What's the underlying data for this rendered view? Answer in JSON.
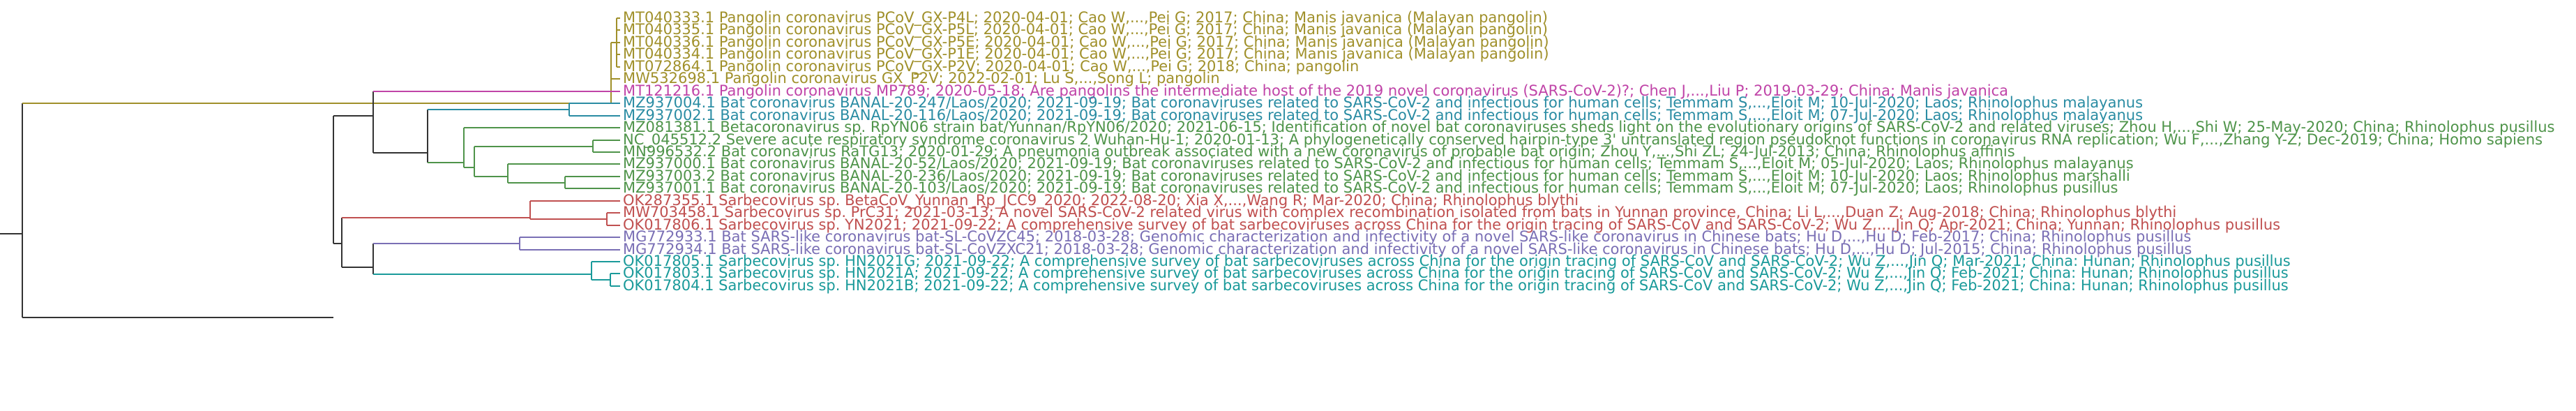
{
  "colors": {
    "root": "#333333",
    "pangolin": "#a0902a",
    "mp789": "#c044a8",
    "banal_teal": "#2a8ca3",
    "sarbeco_green": "#4f944a",
    "red": "#c05050",
    "purple": "#7a6fb5",
    "teal": "#1a9a9a"
  },
  "leaves": [
    {
      "label": "MT040333.1 Pangolin coronavirus PCoV_GX-P4L; 2020-04-01; Cao W,...,Pei G; 2017; China; Manis javanica (Malayan pangolin)",
      "color": "pangolin"
    },
    {
      "label": "MT040335.1 Pangolin coronavirus PCoV_GX-P5L; 2020-04-01; Cao W,...,Pei G; 2017; China; Manis javanica (Malayan pangolin)",
      "color": "pangolin"
    },
    {
      "label": "MT040336.1 Pangolin coronavirus PCoV_GX-P5E; 2020-04-01; Cao W,...,Pei G; 2017; China; Manis javanica (Malayan pangolin)",
      "color": "pangolin"
    },
    {
      "label": "MT040334.1 Pangolin coronavirus PCoV_GX-P1E; 2020-04-01; Cao W,...,Pei G; 2017; China; Manis javanica (Malayan pangolin)",
      "color": "pangolin"
    },
    {
      "label": "MT072864.1 Pangolin coronavirus PCoV_GX-P2V; 2020-04-01; Cao W,...,Pei G; 2018; China; pangolin",
      "color": "pangolin"
    },
    {
      "label": "MW532698.1 Pangolin coronavirus GX_P2V; 2022-02-01; Lu S,...,Song L; pangolin",
      "color": "pangolin"
    },
    {
      "label": "MT121216.1 Pangolin coronavirus MP789; 2020-05-18; Are pangolins the intermediate host of the 2019 novel coronavirus (SARS-CoV-2)?; Chen J,...,Liu P; 2019-03-29; China; Manis javanica",
      "color": "mp789"
    },
    {
      "label": "MZ937004.1 Bat coronavirus BANAL-20-247/Laos/2020; 2021-09-19; Bat coronaviruses related to SARS-CoV-2 and infectious for human cells; Temmam S,...,Eloit M; 10-Jul-2020; Laos; Rhinolophus malayanus",
      "color": "banal_teal"
    },
    {
      "label": "MZ937002.1 Bat coronavirus BANAL-20-116/Laos/2020; 2021-09-19; Bat coronaviruses related to SARS-CoV-2 and infectious for human cells; Temmam S,...,Eloit M; 07-Jul-2020; Laos; Rhinolophus malayanus",
      "color": "banal_teal"
    },
    {
      "label": "MZ081381.1 Betacoronavirus sp. RpYN06 strain bat/Yunnan/RpYN06/2020; 2021-06-15; Identification of novel bat coronaviruses sheds light on the evolutionary origins of SARS-CoV-2 and related viruses; Zhou H,...,Shi W; 25-May-2020; China; Rhinolophus pusillus",
      "color": "sarbeco_green"
    },
    {
      "label": "NC_045512.2 Severe acute respiratory syndrome coronavirus 2 Wuhan-Hu-1; 2020-01-13; A phylogenetically conserved hairpin-type 3' untranslated region pseudoknot functions in coronavirus RNA replication; Wu F,...,Zhang Y-Z; Dec-2019; China; Homo sapiens",
      "color": "sarbeco_green"
    },
    {
      "label": "MN996532.2 Bat coronavirus RaTG13; 2020-01-29; A pneumonia outbreak associated with a new coronavirus of probable bat origin; Zhou Y,...,Shi ZL; 24-Jul-2013; China; Rhinolophus affinis",
      "color": "sarbeco_green"
    },
    {
      "label": "MZ937000.1 Bat coronavirus BANAL-20-52/Laos/2020; 2021-09-19; Bat coronaviruses related to SARS-CoV-2 and infectious for human cells; Temmam S,...,Eloit M; 05-Jul-2020; Laos; Rhinolophus malayanus",
      "color": "sarbeco_green"
    },
    {
      "label": "MZ937003.2 Bat coronavirus BANAL-20-236/Laos/2020; 2021-09-19; Bat coronaviruses related to SARS-CoV-2 and infectious for human cells; Temmam S,...,Eloit M; 10-Jul-2020; Laos; Rhinolophus marshalli",
      "color": "sarbeco_green"
    },
    {
      "label": "MZ937001.1 Bat coronavirus BANAL-20-103/Laos/2020; 2021-09-19; Bat coronaviruses related to SARS-CoV-2 and infectious for human cells; Temmam S,...,Eloit M; 07-Jul-2020; Laos; Rhinolophus pusillus",
      "color": "sarbeco_green"
    },
    {
      "label": "OK287355.1 Sarbecovirus sp. BetaCoV_Yunnan_Rp_JCC9_2020; 2022-08-20; Xia X,...,Wang R; Mar-2020; China; Rhinolophus blythi",
      "color": "red"
    },
    {
      "label": "MW703458.1 Sarbecovirus sp. PrC31; 2021-03-13; A novel SARS-CoV-2 related virus with complex recombination isolated from bats in Yunnan province, China; Li L,...,Duan Z; Aug-2018; China; Rhinolophus blythi",
      "color": "red"
    },
    {
      "label": "OK017806.1 Sarbecovirus sp. YN2021; 2021-09-22; A comprehensive survey of bat sarbecoviruses across China for the origin tracing of SARS-CoV and SARS-CoV-2; Wu Z,...,Jin Q; Apr-2021; China; Yunnan; Rhinolophus pusillus",
      "color": "red"
    },
    {
      "label": "MG772933.1 Bat SARS-like coronavirus bat-SL-CoVZC45; 2018-03-28; Genomic characterization and infectivity of a novel SARS-like coronavirus in Chinese bats; Hu D,...,Hu D; Feb-2017; China; Rhinolophus pusillus",
      "color": "purple"
    },
    {
      "label": "MG772934.1 Bat SARS-like coronavirus bat-SL-CoVZXC21; 2018-03-28; Genomic characterization and infectivity of a novel SARS-like coronavirus in Chinese bats; Hu D,...,Hu D; Jul-2015; China; Rhinolophus pusillus",
      "color": "purple"
    },
    {
      "label": "OK017805.1 Sarbecovirus sp. HN2021G; 2021-09-22; A comprehensive survey of bat sarbecoviruses across China for the origin tracing of SARS-CoV and SARS-CoV-2; Wu Z,...,Jin Q; Mar-2021; China: Hunan; Rhinolophus pusillus",
      "color": "teal"
    },
    {
      "label": "OK017803.1 Sarbecovirus sp. HN2021A; 2021-09-22; A comprehensive survey of bat sarbecoviruses across China for the origin tracing of SARS-CoV and SARS-CoV-2; Wu Z,...,Jin Q; Feb-2021; China: Hunan; Rhinolophus pusillus",
      "color": "teal"
    },
    {
      "label": "OK017804.1 Sarbecovirus sp. HN2021B; 2021-09-22; A comprehensive survey of bat sarbecoviruses across China for the origin tracing of SARS-CoV and SARS-CoV-2; Wu Z,...,Jin Q; Feb-2021; China: Hunan; Rhinolophus pusillus",
      "color": "teal"
    }
  ]
}
